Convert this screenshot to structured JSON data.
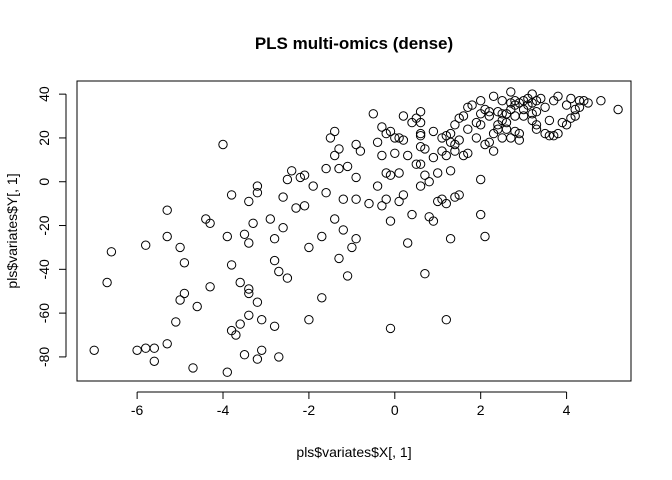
{
  "chart_data": {
    "type": "scatter",
    "title": "PLS multi-omics (dense)",
    "xlabel": "pls$variates$X[, 1]",
    "ylabel": "pls$variates$Y[, 1]",
    "xlim": [
      -7.4,
      5.5
    ],
    "ylim": [
      -91,
      46
    ],
    "xticks": [
      -6,
      -4,
      -2,
      0,
      2,
      4
    ],
    "yticks": [
      -80,
      -60,
      -40,
      -20,
      0,
      20,
      40
    ],
    "xtick_labels": [
      "-6",
      "-4",
      "-2",
      "0",
      "2",
      "4"
    ],
    "ytick_labels": [
      "-80",
      "-60",
      "-40",
      "-20",
      "0",
      "20",
      "40"
    ],
    "grid": false,
    "marker": "open-circle",
    "points": [
      [
        -7.0,
        -77
      ],
      [
        -6.7,
        -46
      ],
      [
        -6.6,
        -32
      ],
      [
        -6.0,
        -77
      ],
      [
        -5.8,
        -76
      ],
      [
        -5.8,
        -29
      ],
      [
        -5.6,
        -82
      ],
      [
        -5.6,
        -76
      ],
      [
        -5.3,
        -74
      ],
      [
        -5.3,
        -13
      ],
      [
        -5.3,
        -25
      ],
      [
        -5.1,
        -64
      ],
      [
        -5.0,
        -30
      ],
      [
        -5.0,
        -54
      ],
      [
        -4.9,
        -51
      ],
      [
        -4.9,
        -37
      ],
      [
        -4.7,
        -85
      ],
      [
        -4.6,
        -57
      ],
      [
        -4.4,
        -17
      ],
      [
        -4.3,
        -19
      ],
      [
        -4.3,
        -48
      ],
      [
        -4.0,
        17
      ],
      [
        -3.9,
        -87
      ],
      [
        -3.9,
        -25
      ],
      [
        -3.8,
        -6
      ],
      [
        -3.8,
        -38
      ],
      [
        -3.8,
        -68
      ],
      [
        -3.7,
        -70
      ],
      [
        -3.6,
        -46
      ],
      [
        -3.6,
        -65
      ],
      [
        -3.5,
        -79
      ],
      [
        -3.5,
        -24
      ],
      [
        -3.4,
        -51
      ],
      [
        -3.4,
        -49
      ],
      [
        -3.4,
        -61
      ],
      [
        -3.4,
        -9
      ],
      [
        -3.4,
        -28
      ],
      [
        -3.3,
        -19
      ],
      [
        -3.2,
        -5
      ],
      [
        -3.2,
        -81
      ],
      [
        -3.2,
        -2
      ],
      [
        -3.2,
        -55
      ],
      [
        -3.1,
        -77
      ],
      [
        -3.1,
        -63
      ],
      [
        -2.9,
        -17
      ],
      [
        -2.8,
        -26
      ],
      [
        -2.8,
        -36
      ],
      [
        -2.8,
        -66
      ],
      [
        -2.7,
        -80
      ],
      [
        -2.7,
        -41
      ],
      [
        -2.6,
        -21
      ],
      [
        -2.6,
        -7
      ],
      [
        -2.5,
        1
      ],
      [
        -2.5,
        -44
      ],
      [
        -2.4,
        5
      ],
      [
        -2.3,
        -12
      ],
      [
        -2.2,
        2
      ],
      [
        -2.1,
        3
      ],
      [
        -2.1,
        -11
      ],
      [
        -2.0,
        -30
      ],
      [
        -2.0,
        -63
      ],
      [
        -1.9,
        -2
      ],
      [
        -1.7,
        -25
      ],
      [
        -1.7,
        -53
      ],
      [
        -1.6,
        -5
      ],
      [
        -1.6,
        6
      ],
      [
        -1.5,
        20
      ],
      [
        -1.4,
        12
      ],
      [
        -1.4,
        23
      ],
      [
        -1.4,
        -17
      ],
      [
        -1.3,
        15
      ],
      [
        -1.3,
        -35
      ],
      [
        -1.3,
        6
      ],
      [
        -1.2,
        -8
      ],
      [
        -1.2,
        -22
      ],
      [
        -1.1,
        -43
      ],
      [
        -1.1,
        7
      ],
      [
        -1.0,
        -30
      ],
      [
        -0.9,
        -8
      ],
      [
        -0.9,
        2
      ],
      [
        -0.9,
        17
      ],
      [
        -0.9,
        -26
      ],
      [
        -0.8,
        14
      ],
      [
        -0.6,
        -10
      ],
      [
        -0.5,
        31
      ],
      [
        -0.4,
        -2
      ],
      [
        -0.4,
        18
      ],
      [
        -0.3,
        12
      ],
      [
        -0.3,
        -11
      ],
      [
        -0.3,
        25
      ],
      [
        -0.2,
        -8
      ],
      [
        -0.2,
        22
      ],
      [
        -0.2,
        4
      ],
      [
        -0.1,
        -67
      ],
      [
        -0.1,
        -18
      ],
      [
        -0.1,
        23
      ],
      [
        -0.1,
        3
      ],
      [
        0.0,
        20
      ],
      [
        0.0,
        13
      ],
      [
        0.1,
        -9
      ],
      [
        0.1,
        4
      ],
      [
        0.1,
        20
      ],
      [
        0.2,
        -6
      ],
      [
        0.2,
        30
      ],
      [
        0.2,
        19
      ],
      [
        0.3,
        -28
      ],
      [
        0.3,
        12
      ],
      [
        0.4,
        27
      ],
      [
        0.4,
        -15
      ],
      [
        0.5,
        29
      ],
      [
        0.5,
        8
      ],
      [
        0.6,
        22
      ],
      [
        0.6,
        21
      ],
      [
        0.6,
        32
      ],
      [
        0.6,
        27
      ],
      [
        0.6,
        16
      ],
      [
        0.6,
        8
      ],
      [
        0.6,
        -2
      ],
      [
        0.7,
        -42
      ],
      [
        0.7,
        3
      ],
      [
        0.7,
        15
      ],
      [
        0.8,
        -16
      ],
      [
        0.8,
        0
      ],
      [
        0.9,
        23
      ],
      [
        0.9,
        11
      ],
      [
        0.9,
        -18
      ],
      [
        1.0,
        4
      ],
      [
        1.0,
        -9
      ],
      [
        1.1,
        14
      ],
      [
        1.1,
        20
      ],
      [
        1.1,
        -8
      ],
      [
        1.2,
        -63
      ],
      [
        1.2,
        -10
      ],
      [
        1.2,
        12
      ],
      [
        1.2,
        21
      ],
      [
        1.3,
        5
      ],
      [
        1.3,
        18
      ],
      [
        1.3,
        22
      ],
      [
        1.3,
        -26
      ],
      [
        1.4,
        -7
      ],
      [
        1.4,
        14
      ],
      [
        1.4,
        17
      ],
      [
        1.4,
        26
      ],
      [
        1.5,
        29
      ],
      [
        1.5,
        -6
      ],
      [
        1.5,
        19
      ],
      [
        1.6,
        30
      ],
      [
        1.6,
        12
      ],
      [
        1.7,
        24
      ],
      [
        1.7,
        34
      ],
      [
        1.7,
        13
      ],
      [
        1.8,
        35
      ],
      [
        1.9,
        27
      ],
      [
        1.9,
        20
      ],
      [
        2.0,
        -15
      ],
      [
        2.0,
        1
      ],
      [
        2.0,
        26
      ],
      [
        2.0,
        37
      ],
      [
        2.0,
        31
      ],
      [
        2.1,
        -25
      ],
      [
        2.1,
        17
      ],
      [
        2.1,
        33
      ],
      [
        2.2,
        18
      ],
      [
        2.2,
        32
      ],
      [
        2.2,
        30
      ],
      [
        2.3,
        14
      ],
      [
        2.3,
        22
      ],
      [
        2.3,
        39
      ],
      [
        2.4,
        24
      ],
      [
        2.4,
        26
      ],
      [
        2.4,
        32
      ],
      [
        2.5,
        28
      ],
      [
        2.5,
        20
      ],
      [
        2.5,
        31
      ],
      [
        2.5,
        37
      ],
      [
        2.6,
        27
      ],
      [
        2.6,
        24
      ],
      [
        2.6,
        31
      ],
      [
        2.7,
        20
      ],
      [
        2.7,
        33
      ],
      [
        2.7,
        36
      ],
      [
        2.7,
        41
      ],
      [
        2.8,
        35
      ],
      [
        2.8,
        23
      ],
      [
        2.8,
        30
      ],
      [
        2.8,
        37
      ],
      [
        2.9,
        22
      ],
      [
        2.9,
        36
      ],
      [
        2.9,
        19
      ],
      [
        3.0,
        30
      ],
      [
        3.0,
        33
      ],
      [
        3.0,
        37
      ],
      [
        3.1,
        38
      ],
      [
        3.1,
        35
      ],
      [
        3.2,
        31
      ],
      [
        3.2,
        28
      ],
      [
        3.2,
        36
      ],
      [
        3.2,
        40
      ],
      [
        3.3,
        24
      ],
      [
        3.3,
        26
      ],
      [
        3.3,
        32
      ],
      [
        3.3,
        37
      ],
      [
        3.4,
        38
      ],
      [
        3.5,
        34
      ],
      [
        3.5,
        22
      ],
      [
        3.6,
        21
      ],
      [
        3.6,
        28
      ],
      [
        3.7,
        37
      ],
      [
        3.7,
        21
      ],
      [
        3.8,
        22
      ],
      [
        3.8,
        39
      ],
      [
        3.9,
        27
      ],
      [
        4.0,
        35
      ],
      [
        4.0,
        26
      ],
      [
        4.1,
        29
      ],
      [
        4.1,
        38
      ],
      [
        4.2,
        30
      ],
      [
        4.2,
        33
      ],
      [
        4.3,
        34
      ],
      [
        4.3,
        37
      ],
      [
        4.4,
        37
      ],
      [
        4.5,
        36
      ],
      [
        4.8,
        37
      ],
      [
        5.2,
        33
      ]
    ]
  }
}
